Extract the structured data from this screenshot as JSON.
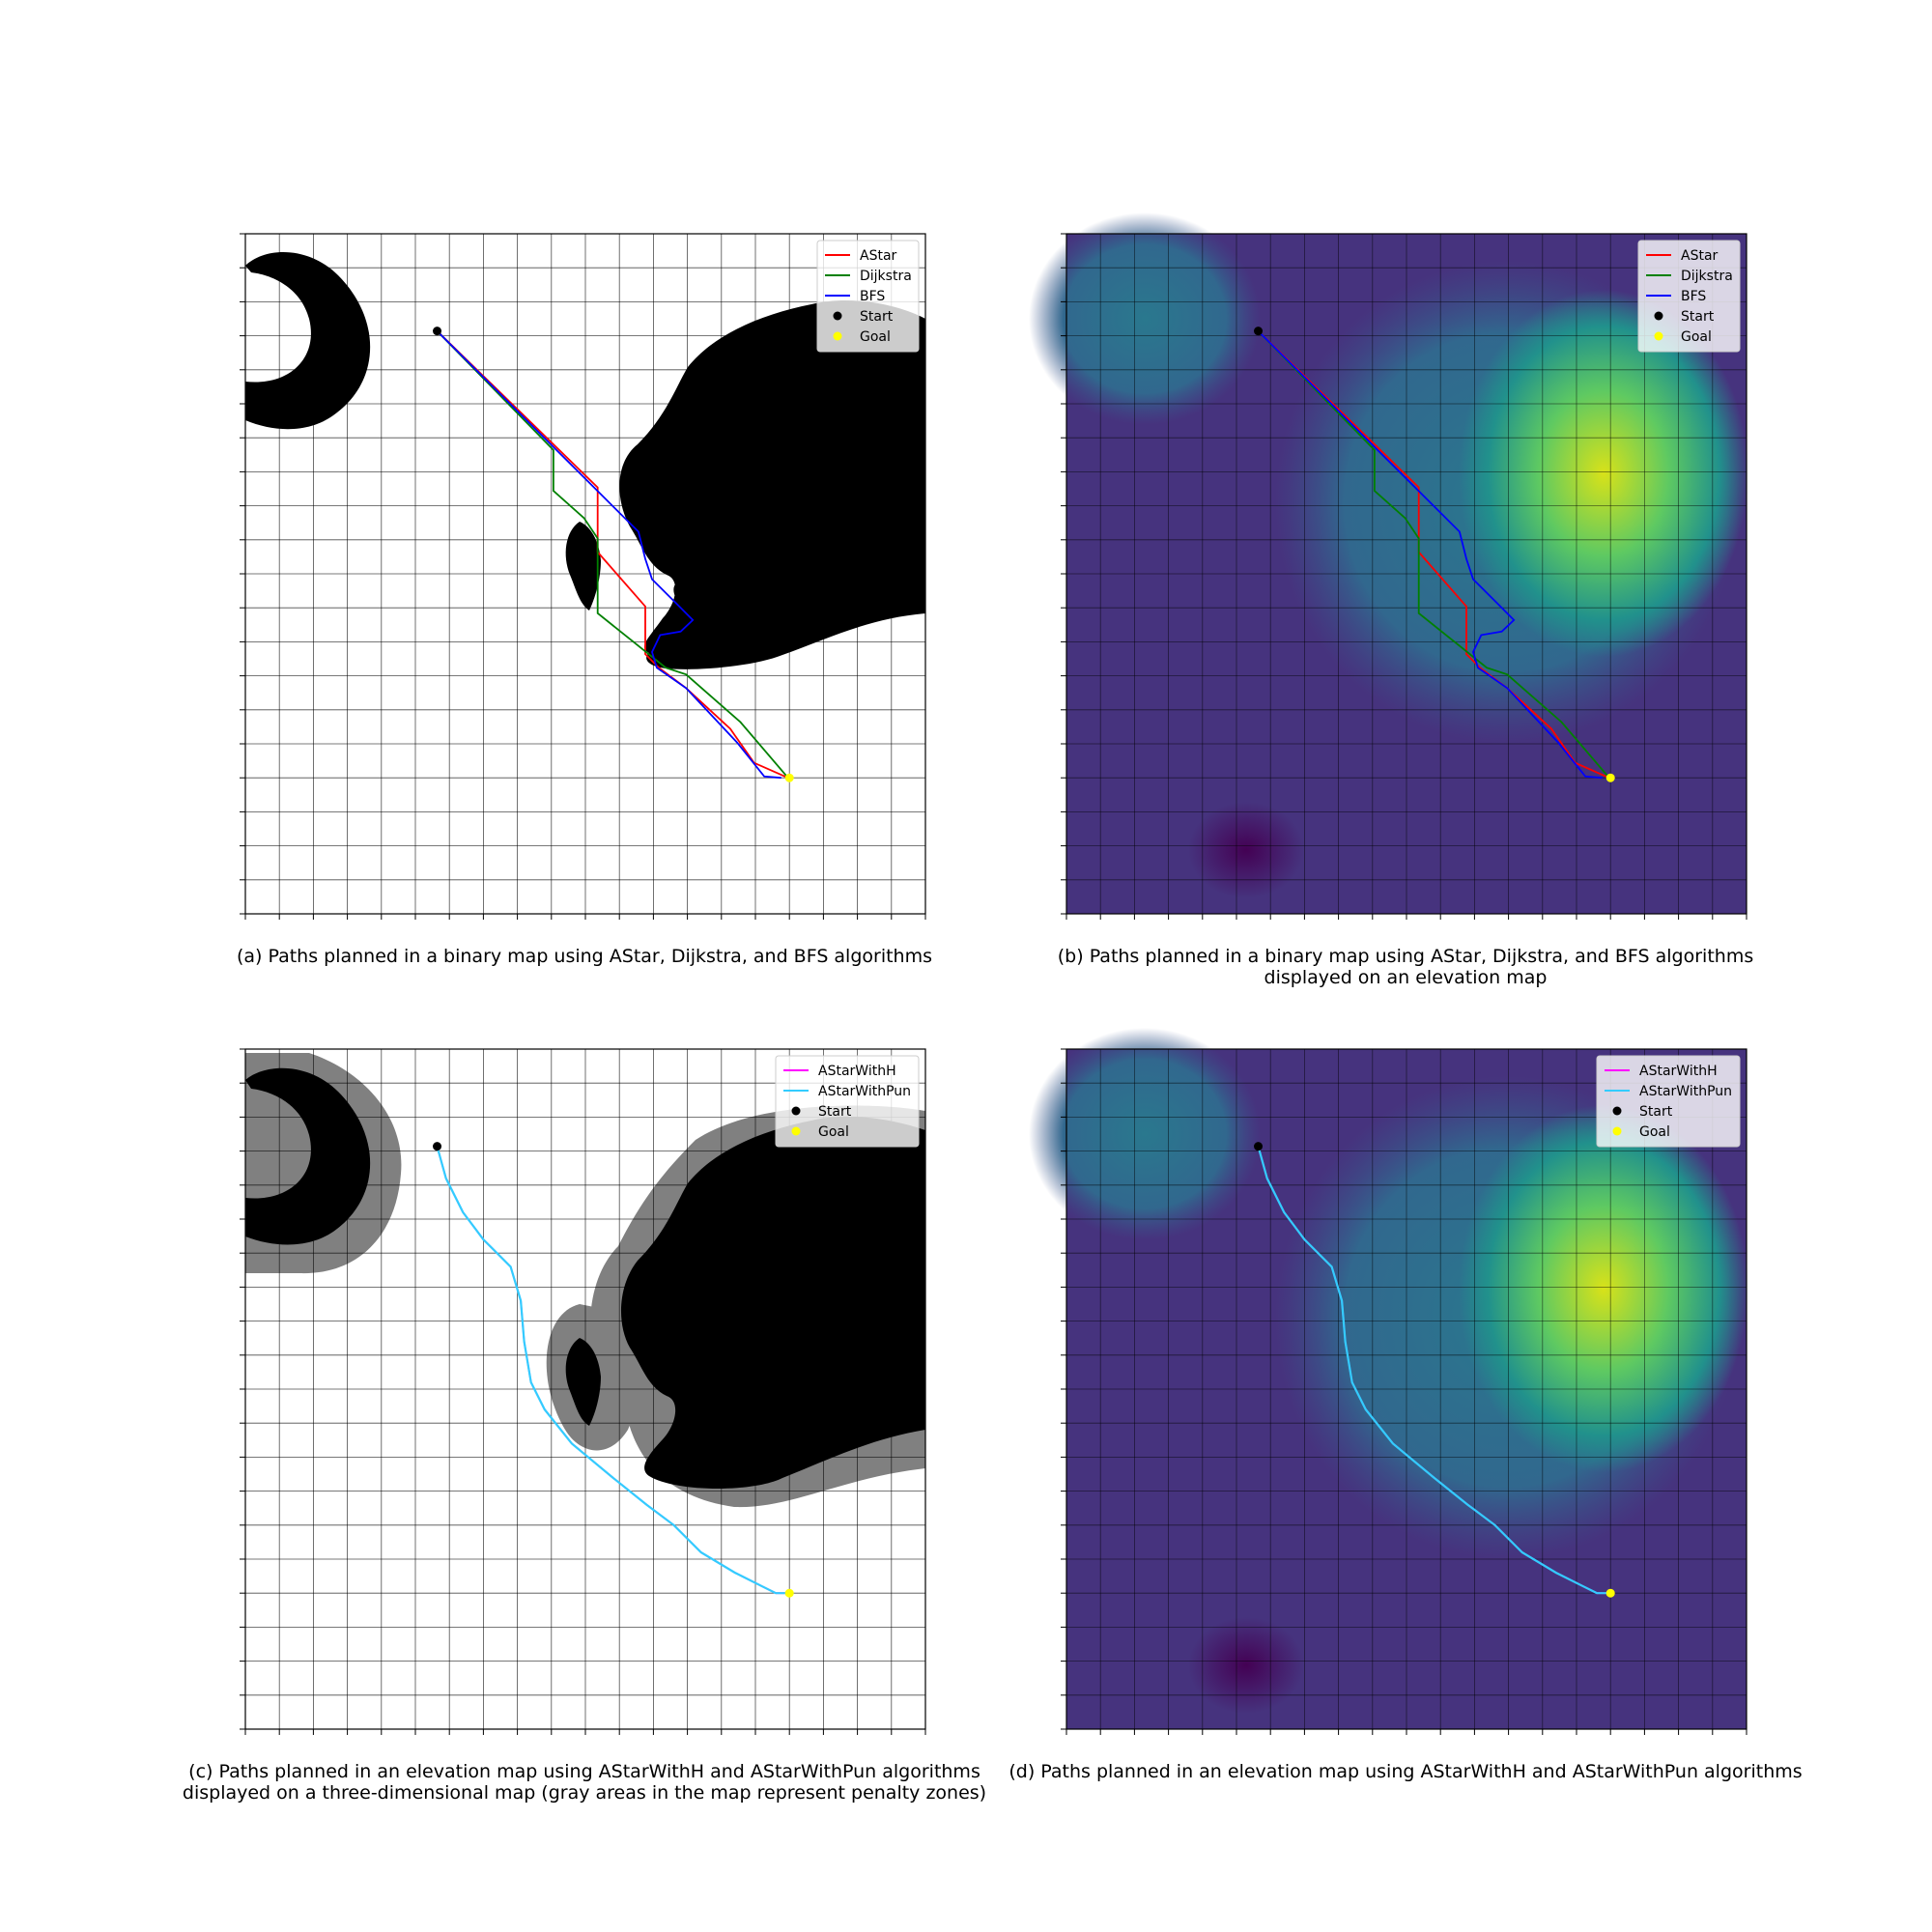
{
  "figure": {
    "captions": [
      {
        "lines": [
          "(a) Paths planned in a binary map using AStar, Dijkstra, and BFS algorithms"
        ]
      },
      {
        "lines": [
          "(b) Paths planned in a binary map using AStar, Dijkstra, and BFS algorithms",
          "displayed on an elevation map"
        ]
      },
      {
        "lines": [
          " (c) Paths planned in an elevation map using AStarWithH and AStarWithPun algorithms",
          "displayed on a three-dimensional map (gray areas in the map represent penalty zones)"
        ]
      },
      {
        "lines": [
          "(d) Paths planned in an elevation map using AStarWithH and AStarWithPun algorithms"
        ]
      }
    ]
  },
  "chart_data": [
    {
      "panel": "a",
      "type": "line",
      "background": "binary obstacle map",
      "grid": true,
      "legend_position": "top-right",
      "series": [
        {
          "name": "AStar",
          "color": "#ff0000"
        },
        {
          "name": "Dijkstra",
          "color": "#008000"
        },
        {
          "name": "BFS",
          "color": "#0000ff"
        }
      ],
      "markers": [
        {
          "name": "Start",
          "color": "#000000"
        },
        {
          "name": "Goal",
          "color": "#ffff00"
        }
      ]
    },
    {
      "panel": "b",
      "type": "line",
      "background": "elevation map (viridis)",
      "grid": true,
      "legend_position": "top-right",
      "series": [
        {
          "name": "AStar",
          "color": "#ff0000"
        },
        {
          "name": "Dijkstra",
          "color": "#008000"
        },
        {
          "name": "BFS",
          "color": "#0000ff"
        }
      ],
      "markers": [
        {
          "name": "Start",
          "color": "#000000"
        },
        {
          "name": "Goal",
          "color": "#ffff00"
        }
      ]
    },
    {
      "panel": "c",
      "type": "line",
      "background": "binary obstacle map with gray penalty zones",
      "grid": true,
      "legend_position": "top-right",
      "series": [
        {
          "name": "AStarWithH",
          "color": "#ff00ff"
        },
        {
          "name": "AStarWithPun",
          "color": "#33ccff"
        }
      ],
      "markers": [
        {
          "name": "Start",
          "color": "#000000"
        },
        {
          "name": "Goal",
          "color": "#ffff00"
        }
      ]
    },
    {
      "panel": "d",
      "type": "line",
      "background": "elevation map (viridis)",
      "grid": true,
      "legend_position": "top-right",
      "series": [
        {
          "name": "AStarWithH",
          "color": "#ff00ff"
        },
        {
          "name": "AStarWithPun",
          "color": "#33ccff"
        }
      ],
      "markers": [
        {
          "name": "Start",
          "color": "#000000"
        },
        {
          "name": "Goal",
          "color": "#ffff00"
        }
      ]
    }
  ]
}
